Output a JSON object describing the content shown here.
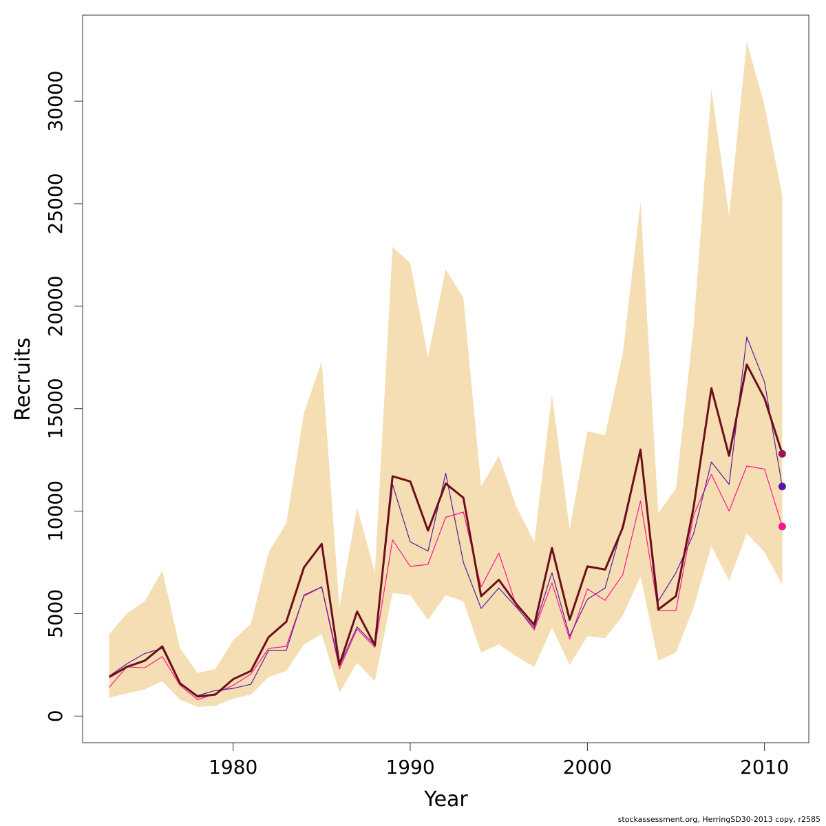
{
  "chart_data": {
    "type": "line",
    "xlabel": "Year",
    "ylabel": "Recruits",
    "xlim": [
      1971.5,
      2012.5
    ],
    "ylim": [
      -1300,
      34200
    ],
    "x_ticks": [
      1980,
      1990,
      2000,
      2010
    ],
    "y_ticks": [
      0,
      5000,
      10000,
      15000,
      20000,
      25000,
      30000
    ],
    "grid": false,
    "legend": "none",
    "x": [
      1973,
      1974,
      1975,
      1976,
      1977,
      1978,
      1979,
      1980,
      1981,
      1982,
      1983,
      1984,
      1985,
      1986,
      1987,
      1988,
      1989,
      1990,
      1991,
      1992,
      1993,
      1994,
      1995,
      1996,
      1997,
      1998,
      1999,
      2000,
      2001,
      2002,
      2003,
      2004,
      2005,
      2006,
      2007,
      2008,
      2009,
      2010,
      2011
    ],
    "band": {
      "color": "#F5DEB3",
      "upper": [
        4000,
        5000,
        5600,
        7100,
        3300,
        2100,
        2300,
        3700,
        4500,
        8000,
        9400,
        14800,
        17300,
        5300,
        10200,
        7000,
        22900,
        22100,
        17500,
        21800,
        20400,
        11200,
        12700,
        10200,
        8500,
        15700,
        9100,
        13900,
        13700,
        17700,
        25100,
        9900,
        11100,
        19000,
        30600,
        24400,
        32900,
        29800,
        25400
      ],
      "lower": [
        900,
        1100,
        1300,
        1700,
        800,
        450,
        500,
        850,
        1050,
        1900,
        2200,
        3500,
        4000,
        1150,
        2600,
        1700,
        6000,
        5900,
        4700,
        5900,
        5600,
        3100,
        3500,
        2900,
        2400,
        4300,
        2500,
        3900,
        3800,
        4900,
        6800,
        2700,
        3100,
        5300,
        8300,
        6600,
        8900,
        8000,
        6400
      ]
    },
    "series": [
      {
        "color": "#6B0F1A",
        "values": [
          1900,
          2400,
          2700,
          3400,
          1600,
          950,
          1050,
          1800,
          2200,
          3850,
          4600,
          7250,
          8400,
          2500,
          5100,
          3450,
          11700,
          11450,
          9050,
          11350,
          10650,
          5850,
          6650,
          5450,
          4450,
          8200,
          4700,
          7300,
          7150,
          9200,
          13000,
          5200,
          5850,
          10200,
          16000,
          12700,
          17150,
          15500,
          12800
        ],
        "end_marker": "#9C1458",
        "width": 3
      },
      {
        "color": "#5B1A9E",
        "values": [
          1950,
          2550,
          3050,
          3300,
          1550,
          1000,
          1250,
          1350,
          1550,
          3200,
          3200,
          5900,
          6300,
          2450,
          4350,
          3450,
          11300,
          8500,
          8050,
          11850,
          7500,
          5250,
          6250,
          5300,
          4300,
          7000,
          3900,
          5700,
          6250,
          9350,
          13000,
          5600,
          7000,
          8900,
          12400,
          11300,
          18500,
          16300,
          11200
        ],
        "end_marker": "#5B1A9E",
        "width": 1.2
      },
      {
        "color": "#FF1493",
        "values": [
          1400,
          2400,
          2350,
          2900,
          1500,
          800,
          1100,
          1500,
          2050,
          3300,
          3400,
          5850,
          6300,
          2300,
          4250,
          3350,
          8600,
          7300,
          7400,
          9700,
          9950,
          6300,
          7950,
          5350,
          4200,
          6500,
          3750,
          6200,
          5650,
          6900,
          10500,
          5150,
          5150,
          9800,
          11800,
          10000,
          12200,
          12050,
          9250
        ],
        "end_marker": "#FF1493",
        "width": 1.2
      }
    ]
  },
  "footer": {
    "credit": "stockassessment.org, HerringSD30-2013 copy, r2585"
  }
}
